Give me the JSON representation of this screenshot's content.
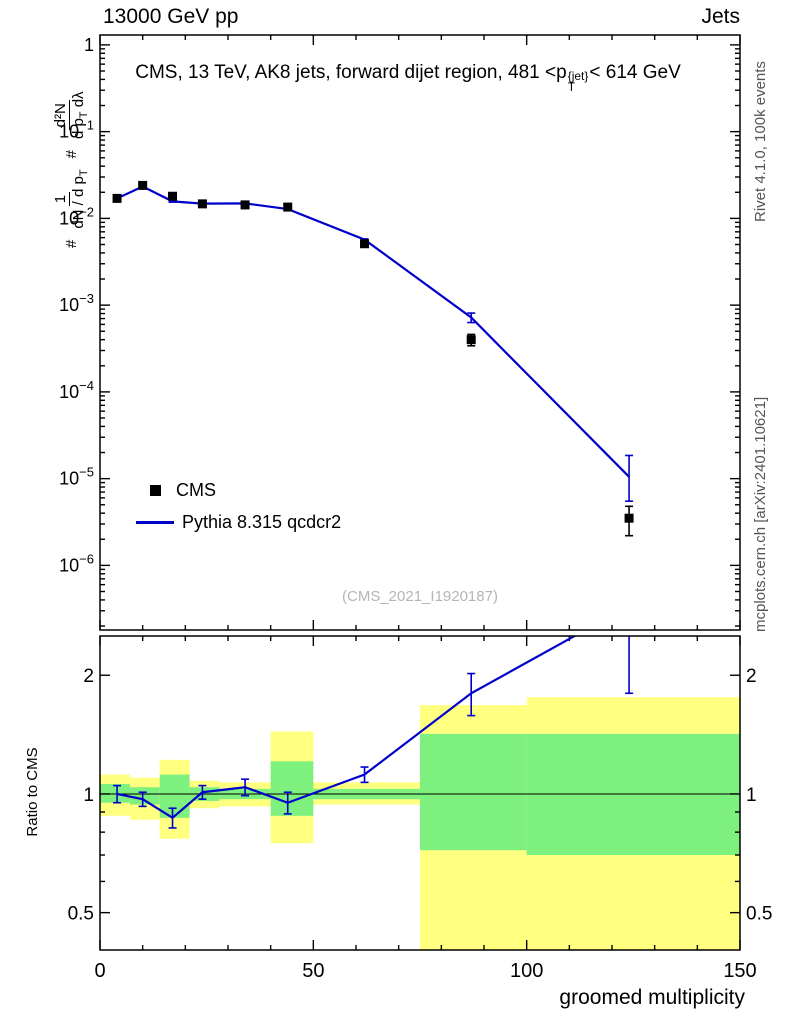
{
  "header": {
    "left": "13000 GeV pp",
    "right": "Jets"
  },
  "side_labels": {
    "top_right": "Rivet 4.1.0, 100k events",
    "bottom_right": "mcplots.cern.ch [arXiv:2401.10621]"
  },
  "watermark": "(CMS_2021_I1920187)",
  "main_title": {
    "pre": "CMS, 13 TeV, AK8 jets, forward dijet region, 481 <p",
    "sup": "{jet}",
    "sub": "T",
    "post": "< 614 GeV"
  },
  "axis_labels": {
    "x": "groomed multiplicity",
    "ratio_y": "Ratio to CMS",
    "main_y": {
      "hash1": "#",
      "num1": "1",
      "den1_pre": "dN / d p",
      "den1_sub": "T",
      "hash2": "#",
      "num2": "d²N",
      "den2_pre": "d p",
      "den2_sub": "T",
      "den2_post": " dλ"
    }
  },
  "legend": [
    {
      "label": "CMS",
      "marker": "black-square"
    },
    {
      "label": "Pythia 8.315 qcdcr2",
      "marker": "blue-line"
    }
  ],
  "colors": {
    "pythia_blue": "#0000cc",
    "band_yellow": "#ffff80",
    "band_green": "#7ef07e",
    "watermark_gray": "#b5b5b5",
    "frame": "#000000"
  },
  "chart_data": [
    {
      "type": "line",
      "panel": "main",
      "title": "CMS, 13 TeV, AK8 jets, forward dijet region, 481 < pT^{jet} < 614 GeV",
      "xlabel": "groomed multiplicity",
      "ylabel": "1/(dN/dpT) d²N/(dpT dλ)",
      "xlim": [
        0,
        150
      ],
      "ylim": [
        1.8e-07,
        1.3
      ],
      "yscale": "log",
      "grid": false,
      "legend_position": "left-bottom",
      "xticks_major": [
        0,
        50,
        100,
        150
      ],
      "xticks_minor_step": 10,
      "ytick_exponents": [
        0,
        -1,
        -2,
        -3,
        -4,
        -5,
        -6
      ],
      "series": [
        {
          "name": "CMS",
          "style": "scatter",
          "color": "#000000",
          "x": [
            4,
            10,
            17,
            24,
            34,
            44,
            62,
            87,
            124
          ],
          "y": [
            0.017,
            0.024,
            0.018,
            0.0147,
            0.0143,
            0.0135,
            0.0051,
            0.0004,
            3.5e-06
          ],
          "yerr_lo": [
            0.0008,
            0.0008,
            0.0007,
            0.0005,
            0.0005,
            0.0005,
            0.0002,
            6e-05,
            1.3e-06
          ],
          "yerr_hi": [
            0.0008,
            0.0008,
            0.0007,
            0.0005,
            0.0005,
            0.0005,
            0.0002,
            6e-05,
            1.3e-06
          ]
        },
        {
          "name": "Pythia 8.315 qcdcr2",
          "style": "line",
          "color": "#0000cc",
          "x": [
            4,
            10,
            17,
            24,
            34,
            44,
            62,
            87,
            124
          ],
          "y": [
            0.017,
            0.0233,
            0.0157,
            0.0148,
            0.0149,
            0.0128,
            0.0057,
            0.00072,
            1.05e-05
          ],
          "yerr_lo": [
            0.0002,
            0.0003,
            0.0003,
            0.0002,
            0.0002,
            0.0002,
            0.0001,
            9e-05,
            5e-06
          ],
          "yerr_hi": [
            0.0002,
            0.0003,
            0.0003,
            0.0002,
            0.0002,
            0.0002,
            0.0001,
            9e-05,
            8e-06
          ]
        }
      ]
    },
    {
      "type": "ratio",
      "panel": "ratio",
      "ylabel": "Ratio to CMS",
      "xlim": [
        0,
        150
      ],
      "ylim": [
        0.402,
        2.515
      ],
      "yscale": "log",
      "yticks_major": [
        0.5,
        1,
        2
      ],
      "yticks_minor": [
        0.6,
        0.7,
        0.8,
        0.9
      ],
      "reference_line": 1,
      "line": {
        "name": "Pythia 8.315 qcdcr2 / CMS",
        "x": [
          4,
          10,
          17,
          24,
          34,
          44,
          62,
          87,
          124
        ],
        "y": [
          1.0,
          0.97,
          0.87,
          1.01,
          1.04,
          0.95,
          1.12,
          1.8,
          3.0
        ],
        "yerr": [
          0.05,
          0.04,
          0.05,
          0.04,
          0.05,
          0.06,
          0.05,
          0.22,
          1.2
        ]
      },
      "bands": {
        "yellow": [
          [
            0,
            7,
            0.88,
            1.12
          ],
          [
            7,
            14,
            0.86,
            1.1
          ],
          [
            14,
            21,
            0.77,
            1.22
          ],
          [
            21,
            28,
            0.92,
            1.08
          ],
          [
            28,
            40,
            0.93,
            1.07
          ],
          [
            40,
            50,
            0.75,
            1.44
          ],
          [
            50,
            75,
            0.94,
            1.07
          ],
          [
            75,
            100,
            0.33,
            1.68
          ],
          [
            100,
            150,
            0.33,
            1.76
          ]
        ],
        "green": [
          [
            0,
            7,
            0.95,
            1.06
          ],
          [
            7,
            14,
            0.94,
            1.04
          ],
          [
            14,
            21,
            0.87,
            1.12
          ],
          [
            21,
            28,
            0.96,
            1.04
          ],
          [
            28,
            40,
            0.97,
            1.03
          ],
          [
            40,
            50,
            0.88,
            1.21
          ],
          [
            50,
            75,
            0.97,
            1.03
          ],
          [
            75,
            100,
            0.72,
            1.42
          ],
          [
            100,
            150,
            0.7,
            1.42
          ]
        ]
      }
    }
  ]
}
